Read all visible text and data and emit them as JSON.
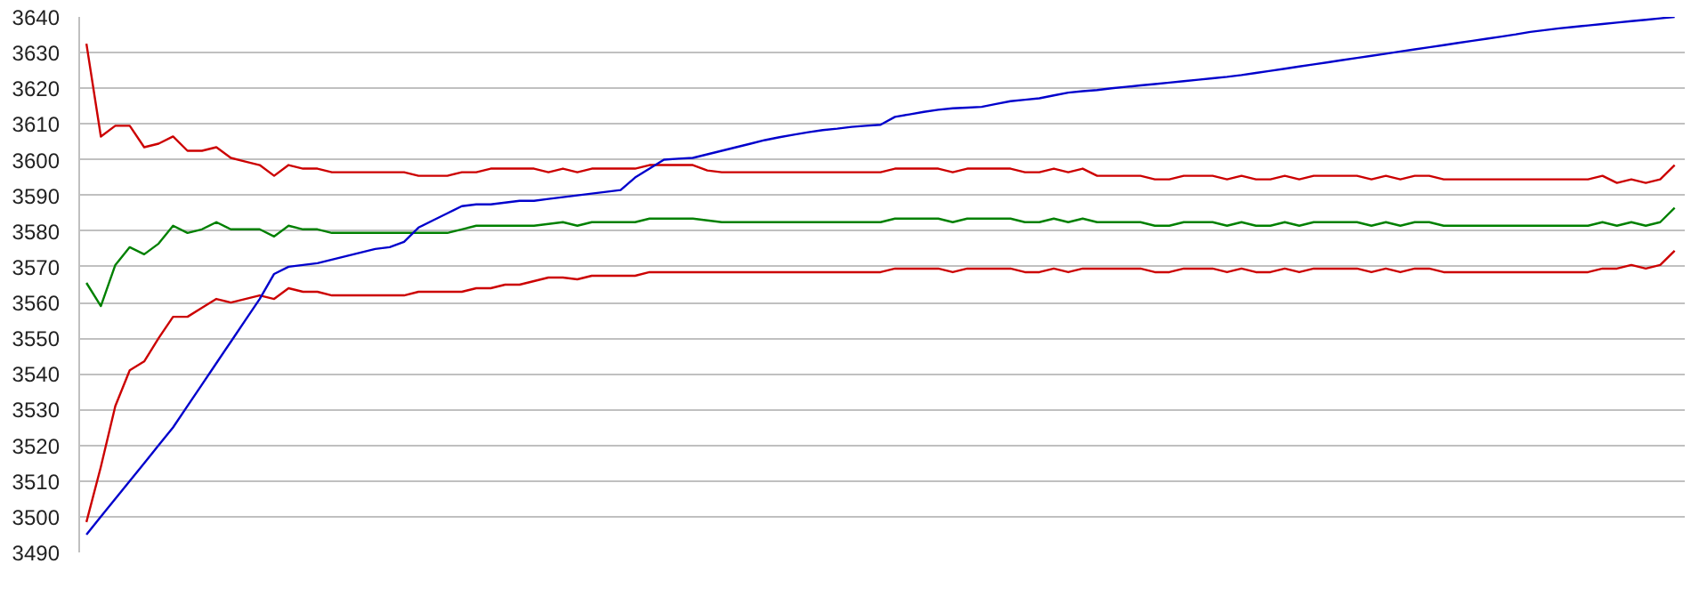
{
  "chart_data": {
    "type": "line",
    "tick_labels": "y",
    "grid": "y",
    "ylim": [
      3490,
      3640
    ],
    "yticks": [
      3490,
      3500,
      3510,
      3520,
      3530,
      3540,
      3550,
      3560,
      3570,
      3580,
      3590,
      3600,
      3610,
      3620,
      3630,
      3640
    ],
    "categories": [
      null,
      null,
      null,
      null,
      null,
      null,
      null,
      null,
      null,
      null,
      null,
      null,
      null,
      null,
      null,
      null,
      null,
      null,
      null,
      null,
      null,
      null,
      null,
      null,
      null,
      null,
      null,
      null,
      null,
      null,
      null,
      null,
      null,
      null,
      null,
      null,
      null,
      null,
      null,
      null,
      null,
      null,
      null,
      null,
      null,
      null,
      null,
      null,
      null,
      null,
      null,
      null,
      null,
      null,
      null,
      null,
      null,
      null,
      null,
      null,
      null,
      null,
      null,
      null,
      null,
      null,
      null,
      null,
      null,
      null,
      null,
      null,
      null,
      null,
      null,
      null,
      null,
      null,
      null,
      null,
      null,
      null,
      null,
      null,
      null,
      null,
      null,
      null,
      null,
      null,
      null,
      null,
      null,
      null,
      null,
      null,
      null,
      null,
      null,
      null,
      null,
      null,
      null,
      null,
      null,
      null,
      null,
      null,
      null,
      null,
      null
    ],
    "series": [
      {
        "color": "#cc0000",
        "values": [
          3632.5,
          3606.5,
          3609.5,
          3609.5,
          3603.5,
          3604.5,
          3606.5,
          3602.5,
          3602.5,
          3603.5,
          3600.5,
          3599.5,
          3598.5,
          3595.5,
          3598.5,
          3597.5,
          3597.5,
          3596.5,
          3596.5,
          3596.5,
          3596.5,
          3596.5,
          3596.5,
          3595.5,
          3595.5,
          3595.5,
          3596.5,
          3596.5,
          3597.5,
          3597.5,
          3597.5,
          3597.5,
          3596.5,
          3597.5,
          3596.5,
          3597.5,
          3597.5,
          3597.5,
          3597.5,
          3598.5,
          3598.5,
          3598.5,
          3598.5,
          3597,
          3596.5,
          3596.5,
          3596.5,
          3596.5,
          3596.5,
          3596.5,
          3596.5,
          3596.5,
          3596.5,
          3596.5,
          3596.5,
          3596.5,
          3597.5,
          3597.5,
          3597.5,
          3597.5,
          3596.5,
          3597.5,
          3597.5,
          3597.5,
          3597.5,
          3596.5,
          3596.5,
          3597.5,
          3596.5,
          3597.5,
          3595.5,
          3595.5,
          3595.5,
          3595.5,
          3594.5,
          3594.5,
          3595.5,
          3595.5,
          3595.5,
          3594.5,
          3595.5,
          3594.5,
          3594.5,
          3595.5,
          3594.5,
          3595.5,
          3595.5,
          3595.5,
          3595.5,
          3594.5,
          3595.5,
          3594.5,
          3595.5,
          3595.5,
          3594.5,
          3594.5,
          3594.5,
          3594.5,
          3594.5,
          3594.5,
          3594.5,
          3594.5,
          3594.5,
          3594.5,
          3594.5,
          3595.5,
          3593.5,
          3594.5,
          3593.5,
          3594.5,
          3598.5
        ]
      },
      {
        "color": "#008000",
        "values": [
          3565.5,
          3559,
          3570.5,
          3575.5,
          3573.5,
          3576.5,
          3581.5,
          3579.5,
          3580.5,
          3582.5,
          3580.5,
          3580.5,
          3580.5,
          3578.5,
          3581.5,
          3580.5,
          3580.5,
          3579.5,
          3579.5,
          3579.5,
          3579.5,
          3579.5,
          3579.5,
          3579.5,
          3579.5,
          3579.5,
          3580.5,
          3581.5,
          3581.5,
          3581.5,
          3581.5,
          3581.5,
          3582,
          3582.5,
          3581.5,
          3582.5,
          3582.5,
          3582.5,
          3582.5,
          3583.5,
          3583.5,
          3583.5,
          3583.5,
          3583,
          3582.5,
          3582.5,
          3582.5,
          3582.5,
          3582.5,
          3582.5,
          3582.5,
          3582.5,
          3582.5,
          3582.5,
          3582.5,
          3582.5,
          3583.5,
          3583.5,
          3583.5,
          3583.5,
          3582.5,
          3583.5,
          3583.5,
          3583.5,
          3583.5,
          3582.5,
          3582.5,
          3583.5,
          3582.5,
          3583.5,
          3582.5,
          3582.5,
          3582.5,
          3582.5,
          3581.5,
          3581.5,
          3582.5,
          3582.5,
          3582.5,
          3581.5,
          3582.5,
          3581.5,
          3581.5,
          3582.5,
          3581.5,
          3582.5,
          3582.5,
          3582.5,
          3582.5,
          3581.5,
          3582.5,
          3581.5,
          3582.5,
          3582.5,
          3581.5,
          3581.5,
          3581.5,
          3581.5,
          3581.5,
          3581.5,
          3581.5,
          3581.5,
          3581.5,
          3581.5,
          3581.5,
          3582.5,
          3581.5,
          3582.5,
          3581.5,
          3582.5,
          3586.5
        ]
      },
      {
        "color": "#cc0000",
        "values": [
          3498.5,
          3514,
          3531,
          3541,
          3543.5,
          3550,
          3556,
          3556,
          3558.5,
          3561,
          3560,
          3561,
          3562,
          3561,
          3564,
          3563,
          3563,
          3562,
          3562,
          3562,
          3562,
          3562,
          3562,
          3563,
          3563,
          3563,
          3563,
          3564,
          3564,
          3565,
          3565,
          3566,
          3567,
          3567,
          3566.5,
          3567.5,
          3567.5,
          3567.5,
          3567.5,
          3568.5,
          3568.5,
          3568.5,
          3568.5,
          3568.5,
          3568.5,
          3568.5,
          3568.5,
          3568.5,
          3568.5,
          3568.5,
          3568.5,
          3568.5,
          3568.5,
          3568.5,
          3568.5,
          3568.5,
          3569.5,
          3569.5,
          3569.5,
          3569.5,
          3568.5,
          3569.5,
          3569.5,
          3569.5,
          3569.5,
          3568.5,
          3568.5,
          3569.5,
          3568.5,
          3569.5,
          3569.5,
          3569.5,
          3569.5,
          3569.5,
          3568.5,
          3568.5,
          3569.5,
          3569.5,
          3569.5,
          3568.5,
          3569.5,
          3568.5,
          3568.5,
          3569.5,
          3568.5,
          3569.5,
          3569.5,
          3569.5,
          3569.5,
          3568.5,
          3569.5,
          3568.5,
          3569.5,
          3569.5,
          3568.5,
          3568.5,
          3568.5,
          3568.5,
          3568.5,
          3568.5,
          3568.5,
          3568.5,
          3568.5,
          3568.5,
          3568.5,
          3569.5,
          3569.5,
          3570.5,
          3569.5,
          3570.5,
          3574.5
        ]
      },
      {
        "color": "#0000cc",
        "values": [
          3495,
          3500,
          3505,
          3510,
          3515,
          3520,
          3525,
          3531,
          3537,
          3543,
          3549,
          3555,
          3561,
          3568,
          3570,
          3570.5,
          3571,
          3572,
          3573,
          3574,
          3575,
          3575.5,
          3577,
          3581,
          3583,
          3585,
          3587,
          3587.5,
          3587.5,
          3588,
          3588.5,
          3588.5,
          3589,
          3589.5,
          3590,
          3590.5,
          3591,
          3591.5,
          3595,
          3597.5,
          3600,
          3600.3,
          3600.5,
          3601.5,
          3602.5,
          3603.5,
          3604.5,
          3605.5,
          3606.3,
          3607,
          3607.7,
          3608.3,
          3608.7,
          3609.2,
          3609.5,
          3609.8,
          3612,
          3612.7,
          3613.4,
          3614,
          3614.4,
          3614.6,
          3614.8,
          3615.6,
          3616.4,
          3616.8,
          3617.2,
          3618,
          3618.8,
          3619.2,
          3619.5,
          3620,
          3620.4,
          3620.8,
          3621.2,
          3621.6,
          3622,
          3622.4,
          3622.8,
          3623.2,
          3623.7,
          3624.3,
          3624.9,
          3625.5,
          3626.1,
          3626.7,
          3627.3,
          3627.9,
          3628.5,
          3629.1,
          3629.7,
          3630.3,
          3630.9,
          3631.5,
          3632.1,
          3632.7,
          3633.3,
          3633.9,
          3634.5,
          3635.1,
          3635.8,
          3636.3,
          3636.8,
          3637.2,
          3637.6,
          3638,
          3638.4,
          3638.8,
          3639.2,
          3639.6,
          3640
        ]
      }
    ]
  }
}
